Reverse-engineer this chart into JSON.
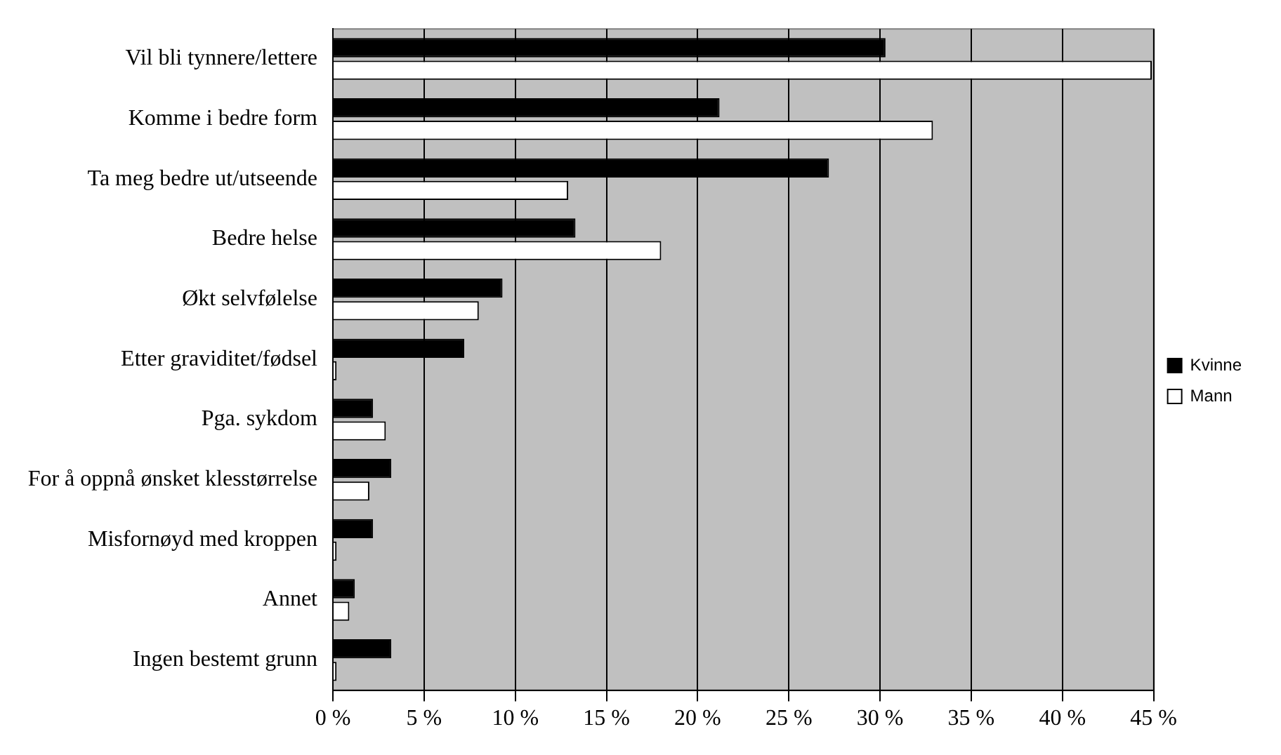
{
  "chart_data": {
    "type": "bar",
    "orientation": "horizontal",
    "categories": [
      "Vil bli tynnere/lettere",
      "Komme i bedre form",
      "Ta meg bedre ut/utseende",
      "Bedre helse",
      "Økt selvfølelse",
      "Etter graviditet/fødsel",
      "Pga. sykdom",
      "For å oppnå ønsket klesstørrelse",
      "Misfornøyd med kroppen",
      "Annet",
      "Ingen bestemt grunn"
    ],
    "series": [
      {
        "name": "Kvinne",
        "color": "#000000",
        "values": [
          30.3,
          21.2,
          27.2,
          13.3,
          9.3,
          7.2,
          2.2,
          3.2,
          2.2,
          1.2,
          3.2
        ]
      },
      {
        "name": "Mann",
        "color": "#ffffff",
        "values": [
          44.9,
          32.9,
          12.9,
          18.0,
          8.0,
          0.2,
          2.9,
          2.0,
          0.2,
          0.9,
          0.2
        ]
      }
    ],
    "xlim": [
      0,
      45
    ],
    "xticks": [
      {
        "value": 0,
        "label": "0 %"
      },
      {
        "value": 5,
        "label": "5 %"
      },
      {
        "value": 10,
        "label": "10 %"
      },
      {
        "value": 15,
        "label": "15 %"
      },
      {
        "value": 20,
        "label": "20 %"
      },
      {
        "value": 25,
        "label": "25 %"
      },
      {
        "value": 30,
        "label": "30 %"
      },
      {
        "value": 35,
        "label": "35 %"
      },
      {
        "value": 40,
        "label": "40 %"
      },
      {
        "value": 45,
        "label": "45 %"
      }
    ],
    "grid": "x",
    "legend": "right"
  }
}
